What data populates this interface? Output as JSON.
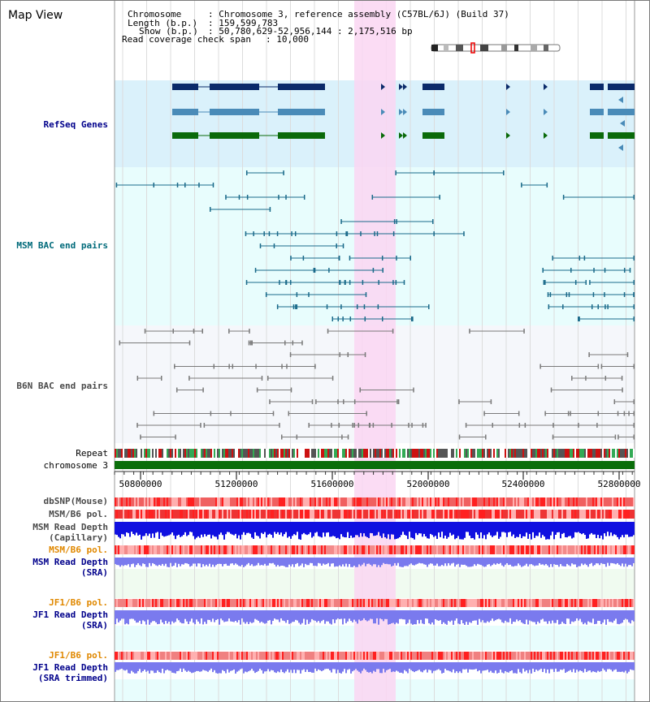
{
  "view_title": "Map View",
  "info": {
    "chromosome_label": "Chromosome",
    "chromosome_value": ": Chromosome 3, reference assembly (C57BL/6J) (Build 37)",
    "length_label": "Length (b.p.)",
    "length_value": ": 159,599,783",
    "show_label": "Show (b.p.)",
    "show_value": ": 50,780,629-52,956,144 : 2,175,516 bp",
    "coverage_label": "Read coverage check span",
    "coverage_value": ": 10,000"
  },
  "tracks": {
    "refseq": "RefSeq Genes",
    "msm_bac": "MSM BAC end pairs",
    "b6n_bac": "B6N BAC end pairs",
    "repeat": "Repeat",
    "chromosome": "chromosome 3",
    "dbsnp": "dbSNP(Mouse)",
    "msm_b6_pol": "MSM/B6 pol.",
    "msm_depth_cap_1": "MSM Read Depth",
    "msm_depth_cap_2": "(Capillary)",
    "msm_b6_pol_2": "MSM/B6 pol.",
    "msm_depth_sra_1": "MSM Read Depth",
    "msm_depth_sra_2": "(SRA)",
    "jf1_b6_pol": "JF1/B6 pol.",
    "jf1_depth_sra_1": "JF1 Read Depth",
    "jf1_depth_sra_2": "(SRA)",
    "jf1_b6_pol_2": "JF1/B6 pol.",
    "jf1_depth_trim_1": "JF1 Read Depth",
    "jf1_depth_trim_2": "(SRA trimmed)"
  },
  "axis_ticks": [
    "50800000",
    "51200000",
    "51600000",
    "52000000",
    "52400000",
    "52800000"
  ],
  "colors": {
    "refseq_bg": "#daf1fb",
    "bac_bg": "#e8fdfd",
    "b6n_bg": "#f5f7fb",
    "highlight": "#fad6f2",
    "gene_dark": "#0a2a6a",
    "gene_light": "#4a8bb8",
    "gene_green": "#0a6a0a",
    "msm_line": "#1a6a8a",
    "b6n_line": "#7a7a7a",
    "chrom_bar": "#0a6e0a",
    "label_blue": "#00008b",
    "label_teal": "#006a7a",
    "label_orange": "#e08800",
    "label_gray": "#4a4a4a",
    "depth_dark": "#1010e0",
    "depth_light": "#7a7aee",
    "pol_red": "#ee3333"
  }
}
